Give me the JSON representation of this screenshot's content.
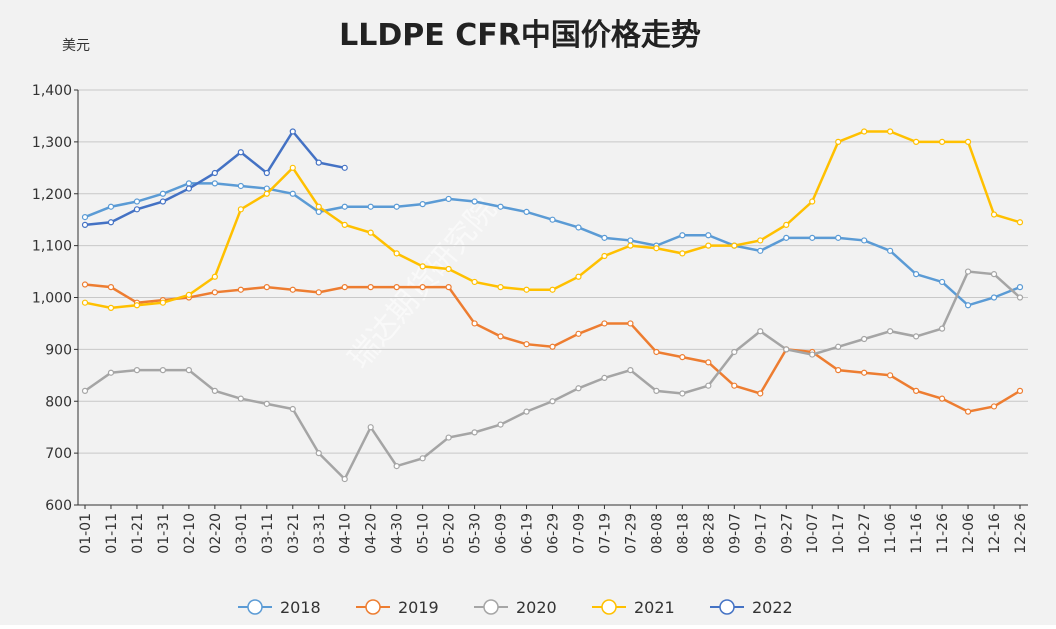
{
  "chart_data": {
    "type": "line",
    "title": "LLDPE CFR中国价格走势",
    "y_unit": "美元",
    "watermark": "瑞达期货研究院",
    "categories": [
      "01-01",
      "01-11",
      "01-21",
      "01-31",
      "02-10",
      "02-20",
      "03-01",
      "03-11",
      "03-21",
      "03-31",
      "04-10",
      "04-20",
      "04-30",
      "05-10",
      "05-20",
      "05-30",
      "06-09",
      "06-19",
      "06-29",
      "07-09",
      "07-19",
      "07-29",
      "08-08",
      "08-18",
      "08-28",
      "09-07",
      "09-17",
      "09-27",
      "10-07",
      "10-17",
      "10-27",
      "11-06",
      "11-16",
      "11-26",
      "12-06",
      "12-16",
      "12-26"
    ],
    "series": [
      {
        "name": "2018",
        "color": "#5b9bd5",
        "values": [
          1155,
          1175,
          1185,
          1200,
          1220,
          1220,
          1215,
          1210,
          1200,
          1165,
          1175,
          1175,
          1175,
          1180,
          1190,
          1185,
          1175,
          1165,
          1150,
          1135,
          1115,
          1110,
          1100,
          1120,
          1120,
          1100,
          1090,
          1115,
          1115,
          1115,
          1110,
          1090,
          1045,
          1030,
          985,
          1000,
          1020
        ]
      },
      {
        "name": "2019",
        "color": "#ed7d31",
        "values": [
          1025,
          1020,
          990,
          995,
          1000,
          1010,
          1015,
          1020,
          1015,
          1010,
          1020,
          1020,
          1020,
          1020,
          1020,
          950,
          925,
          910,
          905,
          930,
          950,
          950,
          895,
          885,
          875,
          830,
          815,
          900,
          895,
          860,
          855,
          850,
          820,
          805,
          780,
          790,
          820
        ]
      },
      {
        "name": "2020",
        "color": "#a5a5a5",
        "values": [
          820,
          855,
          860,
          860,
          860,
          820,
          805,
          795,
          785,
          700,
          650,
          750,
          675,
          690,
          730,
          740,
          755,
          780,
          800,
          825,
          845,
          860,
          820,
          815,
          830,
          895,
          935,
          900,
          890,
          905,
          920,
          935,
          925,
          940,
          1050,
          1045,
          1000
        ]
      },
      {
        "name": "2021",
        "color": "#ffc000",
        "values": [
          990,
          980,
          985,
          990,
          1005,
          1040,
          1170,
          1200,
          1250,
          1175,
          1140,
          1125,
          1085,
          1060,
          1055,
          1030,
          1020,
          1015,
          1015,
          1040,
          1080,
          1100,
          1095,
          1085,
          1100,
          1100,
          1110,
          1140,
          1185,
          1300,
          1320,
          1320,
          1300,
          1300,
          1300,
          1160,
          1145
        ]
      },
      {
        "name": "2022",
        "color": "#4472c4",
        "values": [
          1140,
          1145,
          1170,
          1185,
          1210,
          1240,
          1280,
          1240,
          1320,
          1260,
          1250,
          null,
          null,
          null,
          null,
          null,
          null,
          null,
          null,
          null,
          null,
          null,
          null,
          null,
          null,
          null,
          null,
          null,
          null,
          null,
          null,
          null,
          null,
          null,
          null,
          null,
          null
        ]
      }
    ],
    "ylim": [
      600,
      1400
    ],
    "yticks": [
      600,
      700,
      800,
      900,
      {
        "value": 1000,
        "label": "1,000"
      },
      {
        "value": 1100,
        "label": "1,100"
      },
      {
        "value": 1200,
        "label": "1,200"
      },
      {
        "value": 1300,
        "label": "1,300"
      },
      {
        "value": 1400,
        "label": "1,400"
      }
    ],
    "grid": true,
    "legend": "bottom"
  }
}
